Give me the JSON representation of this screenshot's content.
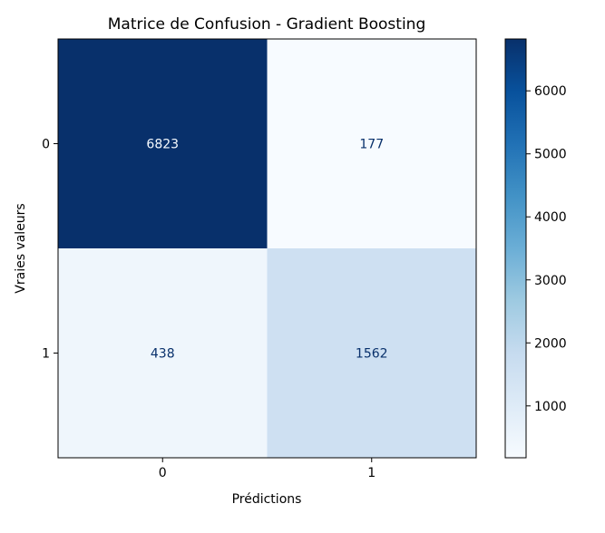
{
  "chart_data": {
    "type": "heatmap",
    "title": "Matrice de Confusion - Gradient Boosting",
    "xlabel": "Prédictions",
    "ylabel": "Vraies valeurs",
    "x_categories": [
      "0",
      "1"
    ],
    "y_categories": [
      "0",
      "1"
    ],
    "values": [
      [
        6823,
        177
      ],
      [
        438,
        1562
      ]
    ],
    "colormap": "Blues",
    "colorbar": {
      "min": 177,
      "max": 6823,
      "ticks": [
        1000,
        2000,
        3000,
        4000,
        5000,
        6000
      ],
      "tick_labels": [
        "1000",
        "2000",
        "3000",
        "4000",
        "5000",
        "6000"
      ]
    },
    "cell_text_colors": {
      "on_dark": "#f7fbff",
      "on_light": "#08306b"
    }
  }
}
